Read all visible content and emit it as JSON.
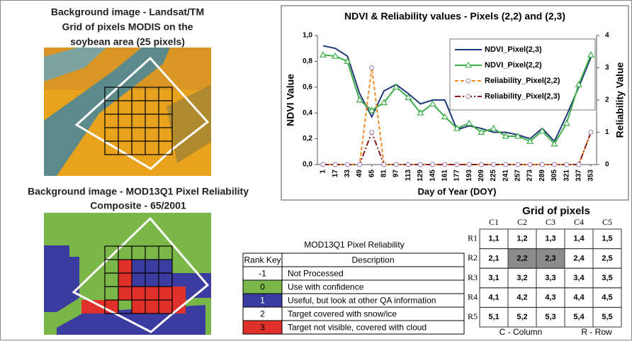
{
  "chart_data": {
    "type": "line",
    "title": "NDVI & Reliability values -  Pixels (2,2) and (2,3)",
    "x_label": "Day of Year (DOY)",
    "y_label": "NDVI Value",
    "y2_label": "Reliability Value",
    "categories": [
      "1",
      "17",
      "33",
      "49",
      "65",
      "81",
      "97",
      "113",
      "129",
      "145",
      "161",
      "177",
      "193",
      "209",
      "225",
      "241",
      "257",
      "273",
      "289",
      "305",
      "321",
      "337",
      "353"
    ],
    "ylim": [
      0,
      1
    ],
    "yticks": [
      {
        "value": 0,
        "label": "0,0"
      },
      {
        "value": 0.2,
        "label": "0,2"
      },
      {
        "value": 0.4,
        "label": "0,4"
      },
      {
        "value": 0.6,
        "label": "0,6"
      },
      {
        "value": 0.8,
        "label": "0,8"
      },
      {
        "value": 1,
        "label": "1,0"
      }
    ],
    "y2lim": [
      0,
      4
    ],
    "y2ticks": [
      0,
      1,
      2,
      3,
      4
    ],
    "series": [
      {
        "name": "NDVI_Pixel(2,3)",
        "color": "#1f3a78",
        "marker": "none",
        "dash": "none",
        "values": [
          0.92,
          0.9,
          0.84,
          0.55,
          0.37,
          0.57,
          0.62,
          0.55,
          0.47,
          0.5,
          0.5,
          0.27,
          0.3,
          0.28,
          0.25,
          0.25,
          0.23,
          0.2,
          0.28,
          0.18,
          0.38,
          0.6,
          0.83
        ]
      },
      {
        "name": "NDVI_Pixel(2,2)",
        "color": "#3dae49",
        "marker": "triangle",
        "dash": "none",
        "values": [
          0.85,
          0.84,
          0.8,
          0.5,
          0.42,
          0.48,
          0.6,
          0.52,
          0.4,
          0.47,
          0.37,
          0.28,
          0.32,
          0.25,
          0.28,
          0.22,
          0.22,
          0.18,
          0.26,
          0.16,
          0.32,
          0.62,
          0.85
        ]
      },
      {
        "name": "Reliability_Pixel(2,2)",
        "color": "#f08a24",
        "marker": "circle",
        "dash": "5,3",
        "axis": "y2",
        "values": [
          0,
          0,
          0,
          0,
          3,
          0,
          0,
          0,
          0,
          0,
          0,
          0,
          0,
          0,
          0,
          0,
          0,
          0,
          0,
          0,
          0,
          0,
          1
        ]
      },
      {
        "name": "Reliability_Pixel(2,3)",
        "color": "#8b1a1a",
        "marker": "circle",
        "dash": "8,3,2,3",
        "axis": "y2",
        "values": [
          0,
          0,
          0,
          0,
          1,
          0,
          0,
          0,
          0,
          0,
          0,
          0,
          0,
          0,
          0,
          0,
          0,
          0,
          0,
          0,
          0,
          0,
          1
        ]
      }
    ],
    "legend": "upper-right"
  },
  "captions": {
    "landsat": [
      "Background image - Landsat/TM",
      "Grid of pixels MODIS on the",
      "soybean area (25 pixels)"
    ],
    "reliability": [
      "Background image - MOD13Q1 Pixel Reliability",
      "Composite - 65/2001"
    ]
  },
  "reliability_table": {
    "title": "MOD13Q1 Pixel Reliability",
    "header": [
      "Rank Key",
      "Description"
    ],
    "rows": [
      {
        "key": -1,
        "description": "Not Processed",
        "color": "#ffffff"
      },
      {
        "key": 0,
        "description": "Use with confidence",
        "color": "#7ab648"
      },
      {
        "key": 1,
        "description": "Useful, but look at other QA information",
        "color": "#3b3ba0"
      },
      {
        "key": 2,
        "description": "Target covered with snow/ice",
        "color": "#ffffff"
      },
      {
        "key": 3,
        "description": "Target not visible, covered with cloud",
        "color": "#e0302a"
      }
    ]
  },
  "pixel_grid": {
    "title": "Grid of pixels",
    "columns": [
      "C1",
      "C2",
      "C3",
      "C4",
      "C5"
    ],
    "rows": [
      "R1",
      "R2",
      "R3",
      "R4",
      "R5"
    ],
    "cells": [
      [
        "1,1",
        "1,2",
        "1,3",
        "1,4",
        "1,5"
      ],
      [
        "2,1",
        "2,2",
        "2,3",
        "2,4",
        "2,5"
      ],
      [
        "3,1",
        "3,2",
        "3,3",
        "3,4",
        "3,5"
      ],
      [
        "4,1",
        "4,2",
        "4,3",
        "4,4",
        "4,5"
      ],
      [
        "5,1",
        "5,2",
        "5,3",
        "5,4",
        "5,5"
      ]
    ],
    "footer": [
      "C - Column",
      "R - Row"
    ]
  }
}
